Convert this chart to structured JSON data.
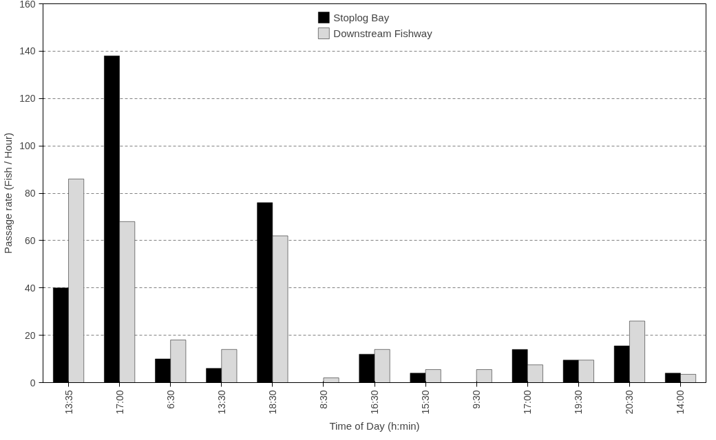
{
  "chart_data": {
    "type": "bar",
    "xlabel": "Time of Day (h:min)",
    "ylabel": "Passage rate (Fish / Hour)",
    "categories": [
      "13:35",
      "17:00",
      "6:30",
      "13:30",
      "18:30",
      "8:30",
      "16:30",
      "15:30",
      "9:30",
      "17:00",
      "19:30",
      "20:30",
      "14:00"
    ],
    "series": [
      {
        "name": "Stoplog Bay",
        "color": "#000000",
        "values": [
          40,
          138,
          10,
          6,
          76,
          0,
          12,
          4,
          0,
          14,
          9.5,
          15.5,
          4
        ]
      },
      {
        "name": "Downstream Fishway",
        "color": "#d9d9d9",
        "values": [
          86,
          68,
          18,
          14,
          62,
          2,
          14,
          5.5,
          5.5,
          7.5,
          9.5,
          26,
          3.5
        ]
      }
    ],
    "ylim": [
      0,
      160
    ],
    "yticks": [
      0,
      20,
      40,
      60,
      80,
      100,
      120,
      140,
      160
    ],
    "grid": "y",
    "legend": "top"
  }
}
